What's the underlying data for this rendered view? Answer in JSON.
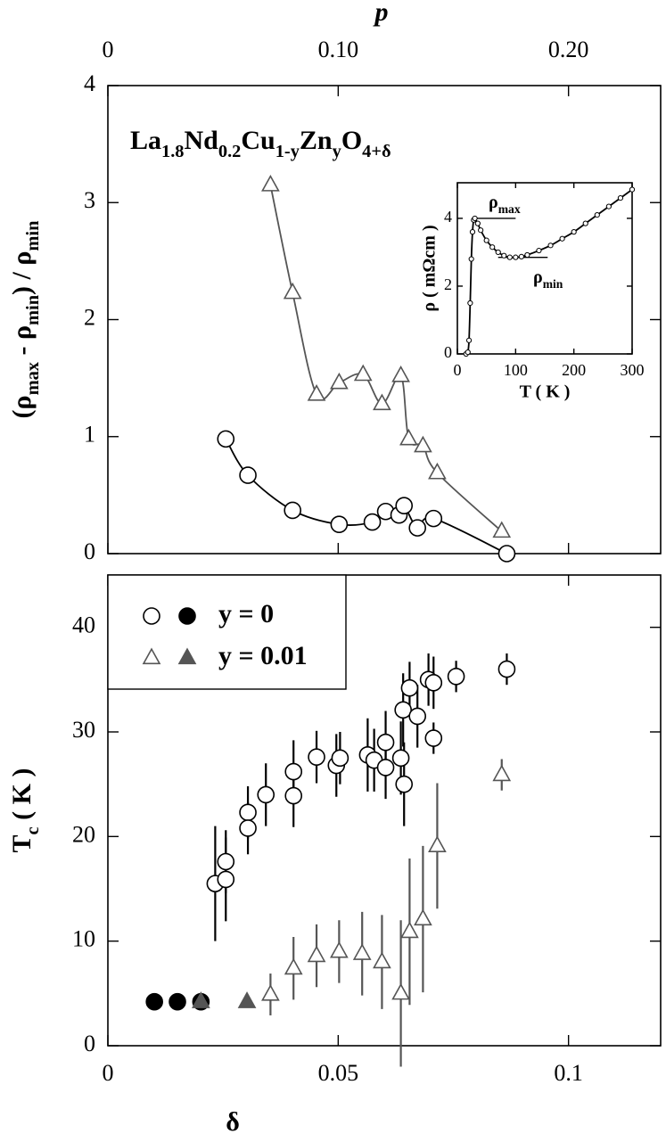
{
  "chart_data": [
    {
      "type": "scatter",
      "title_parts": [
        "La",
        "1.8",
        "Nd",
        "0.2",
        "Cu",
        "1-y",
        "Zn",
        "y",
        "O",
        "4+δ"
      ],
      "ylabel_parts": [
        "(ρ",
        "max",
        " - ρ",
        "min",
        ") / ρ",
        "min"
      ],
      "x2label": "p",
      "xlim": [
        0,
        0.12
      ],
      "xticks": [
        0,
        0.05,
        0.1
      ],
      "x2lim": [
        0,
        0.24
      ],
      "x2ticks": [
        0,
        {
          "value": 0.1,
          "label": "0.10"
        },
        {
          "value": 0.2,
          "label": "0.20"
        }
      ],
      "ylim": [
        0,
        4
      ],
      "yticks": [
        0,
        1,
        2,
        3,
        4
      ],
      "series": [
        {
          "color": "#000000",
          "marker": "circle",
          "line": true,
          "x": [
            0.0256,
            0.0304,
            0.0401,
            0.0502,
            0.0574,
            0.0603,
            0.0632,
            0.0643,
            0.0672,
            0.0707,
            0.0866
          ],
          "values": [
            0.98,
            0.67,
            0.37,
            0.25,
            0.27,
            0.36,
            0.33,
            0.41,
            0.22,
            0.3,
            0.0
          ]
        },
        {
          "color": "#555555",
          "marker": "triangle",
          "line": true,
          "x": [
            0.0353,
            0.0401,
            0.0453,
            0.0502,
            0.0554,
            0.0595,
            0.0636,
            0.0653,
            0.0684,
            0.0715,
            0.0855
          ],
          "values": [
            3.15,
            2.23,
            1.36,
            1.46,
            1.53,
            1.28,
            1.52,
            0.98,
            0.92,
            0.69,
            0.19
          ]
        }
      ]
    },
    {
      "type": "scatter",
      "xlabel": "δ",
      "ylabel_parts": [
        "T",
        "c",
        " ( K )"
      ],
      "xlim": [
        0,
        0.12
      ],
      "xticks": [
        0,
        0.05,
        0.1
      ],
      "ylim": [
        0,
        45
      ],
      "yticks": [
        0,
        10,
        20,
        30,
        40
      ],
      "legend": "upper left",
      "series": [
        {
          "name": "y  =  0",
          "color": "#000000",
          "marker": "circle",
          "x": [
            0.0233,
            0.0256,
            0.0256,
            0.0304,
            0.0304,
            0.0343,
            0.0403,
            0.0403,
            0.0453,
            0.0496,
            0.0504,
            0.0564,
            0.0578,
            0.0603,
            0.0603,
            0.0636,
            0.0643,
            0.0641,
            0.0655,
            0.0672,
            0.0696,
            0.0707,
            0.0707,
            0.0756,
            0.0866
          ],
          "values": [
            15.5,
            17.6,
            15.9,
            22.3,
            20.8,
            24.0,
            26.2,
            23.9,
            27.6,
            26.8,
            27.5,
            27.8,
            27.3,
            29.0,
            26.6,
            27.5,
            25.0,
            32.1,
            34.2,
            31.5,
            35.0,
            34.7,
            29.4,
            35.3,
            36.0
          ],
          "errors": [
            5.5,
            3,
            4,
            2.5,
            2.5,
            3,
            3,
            3,
            2.5,
            3,
            2.5,
            3.5,
            3,
            3,
            3,
            3.5,
            4,
            3.5,
            2.5,
            3,
            2.5,
            2.5,
            1.5,
            1.5,
            1.5
          ],
          "filled_x": [
            0.0101,
            0.0151,
            0.0202
          ],
          "filled_values": [
            4.2,
            4.2,
            4.2
          ]
        },
        {
          "name": "y  =  0.01",
          "color": "#555555",
          "marker": "triangle",
          "x": [
            0.0353,
            0.0403,
            0.0453,
            0.0502,
            0.0552,
            0.0595,
            0.0636,
            0.0655,
            0.0684,
            0.0715,
            0.0855
          ],
          "values": [
            4.9,
            7.4,
            8.6,
            9.0,
            8.8,
            8.0,
            5.0,
            10.9,
            12.1,
            19.1,
            25.9
          ],
          "errors": [
            2,
            3,
            3,
            3,
            4,
            4.5,
            7,
            7,
            7,
            6,
            1.5
          ],
          "filled_x": [
            0.0202,
            0.0302
          ],
          "filled_values": [
            4.2,
            4.2
          ]
        }
      ]
    },
    {
      "type": "scatter",
      "xlabel": "T  (  K  )",
      "ylabel": "ρ  (  mΩcm  )",
      "annotations": [
        [
          "ρ",
          "max"
        ],
        [
          "ρ",
          "min"
        ]
      ],
      "xlim": [
        0,
        300
      ],
      "xticks": [
        0,
        100,
        200,
        300
      ],
      "ylim": [
        0,
        5.05
      ],
      "yticks": [
        0,
        2,
        4
      ],
      "series": [
        {
          "color": "#000000",
          "marker": "dot",
          "line": true,
          "x": [
            15,
            18,
            20,
            22,
            24,
            26,
            28,
            30,
            35,
            40,
            50,
            60,
            70,
            80,
            90,
            100,
            110,
            120,
            140,
            160,
            180,
            200,
            220,
            240,
            260,
            280,
            300
          ],
          "values": [
            0,
            0.05,
            0.4,
            1.5,
            2.8,
            3.6,
            3.95,
            4.0,
            3.85,
            3.65,
            3.35,
            3.15,
            3.0,
            2.9,
            2.85,
            2.85,
            2.87,
            2.92,
            3.05,
            3.2,
            3.4,
            3.6,
            3.85,
            4.1,
            4.35,
            4.6,
            4.85
          ]
        }
      ]
    }
  ]
}
